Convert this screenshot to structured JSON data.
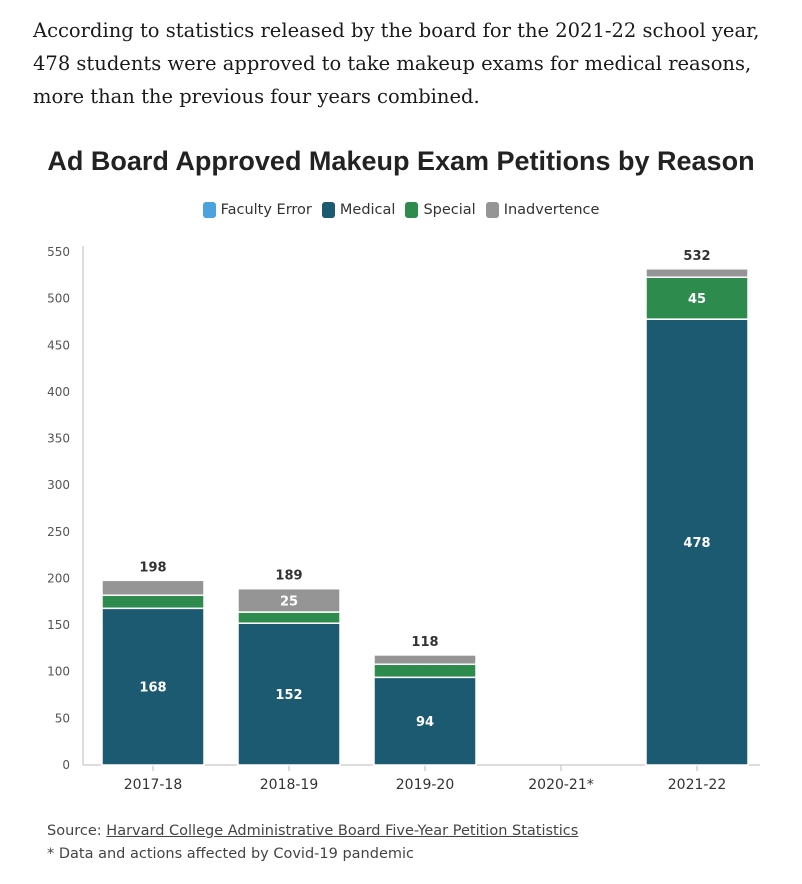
{
  "article": {
    "paragraph": "According to statistics released by the board for the 2021-22 school year, 478 students were approved to take makeup exams for medical reasons, more than the previous four years combined."
  },
  "chart_data": {
    "type": "bar",
    "stacked": true,
    "title": "Ad Board Approved Makeup Exam Petitions by Reason",
    "categories": [
      "2017-18",
      "2018-19",
      "2019-20",
      "2020-21*",
      "2021-22"
    ],
    "series": [
      {
        "name": "Faculty Error",
        "color": "#4aa3df",
        "values": [
          0,
          0,
          0,
          0,
          0
        ]
      },
      {
        "name": "Medical",
        "color": "#1c5a72",
        "values": [
          168,
          152,
          94,
          0,
          478
        ]
      },
      {
        "name": "Special",
        "color": "#2e8b4e",
        "values": [
          14,
          12,
          14,
          0,
          45
        ]
      },
      {
        "name": "Inadvertence",
        "color": "#959595",
        "values": [
          16,
          25,
          10,
          0,
          9
        ]
      }
    ],
    "totals": [
      198,
      189,
      118,
      null,
      532
    ],
    "total_labels": [
      "198",
      "189",
      "118",
      "",
      "532"
    ],
    "segment_labels": {
      "Medical": [
        "168",
        "152",
        "94",
        "",
        "478"
      ],
      "Special": [
        "",
        "",
        "",
        "",
        "45"
      ],
      "Inadvertence": [
        "",
        "25",
        "",
        "",
        ""
      ]
    },
    "ylim": [
      0,
      550
    ],
    "yticks": [
      0,
      50,
      100,
      150,
      200,
      250,
      300,
      350,
      400,
      450,
      500,
      550
    ],
    "grid": false,
    "legend_position": "top-center",
    "xlabel": "",
    "ylabel": ""
  },
  "footer": {
    "source_prefix": "Source: ",
    "source_link": "Harvard College Administrative Board Five-Year Petition Statistics",
    "note": "* Data and actions affected by Covid-19 pandemic"
  }
}
